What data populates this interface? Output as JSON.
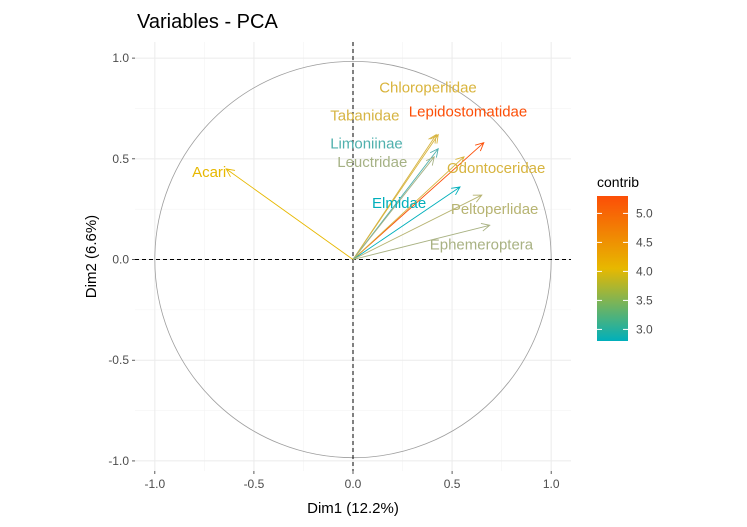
{
  "chart_data": {
    "type": "scatter",
    "subtype": "pca-variable-correlation-circle",
    "title": "Variables - PCA",
    "xlabel": "Dim1 (12.2%)",
    "ylabel": "Dim2 (6.6%)",
    "xlim": [
      -1.1,
      1.1
    ],
    "ylim": [
      -1.05,
      1.08
    ],
    "x_ticks": [
      -1.0,
      -0.5,
      0.0,
      0.5,
      1.0
    ],
    "x_tick_labels": [
      "-1.0",
      "-0.5",
      "0.0",
      "0.5",
      "1.0"
    ],
    "y_ticks": [
      -1.0,
      -0.5,
      0.0,
      0.5,
      1.0
    ],
    "y_tick_labels": [
      "-1.0",
      "-0.5",
      "0.0",
      "0.5",
      "1.0"
    ],
    "grid": true,
    "background": "#ebebeb-free light grey grid",
    "variables": [
      {
        "name": "Acari",
        "x": -0.64,
        "y": 0.45,
        "contrib": 4.1,
        "color": "#e7b800"
      },
      {
        "name": "Chloroperlidae",
        "x": 0.43,
        "y": 0.62,
        "contrib": 3.75,
        "color": "#d9b43c"
      },
      {
        "name": "Tabanidae",
        "x": 0.42,
        "y": 0.62,
        "contrib": 3.7,
        "color": "#d6b442"
      },
      {
        "name": "Lepidostomatidae",
        "x": 0.66,
        "y": 0.58,
        "contrib": 5.2,
        "color": "#fc4e07"
      },
      {
        "name": "Limoniinae",
        "x": 0.43,
        "y": 0.55,
        "contrib": 3.05,
        "color": "#4fb0ad"
      },
      {
        "name": "Leuctridae",
        "x": 0.41,
        "y": 0.51,
        "contrib": 3.35,
        "color": "#a6b285"
      },
      {
        "name": "Odontoceridae",
        "x": 0.56,
        "y": 0.51,
        "contrib": 3.85,
        "color": "#d7b43f"
      },
      {
        "name": "Elmidae",
        "x": 0.54,
        "y": 0.36,
        "contrib": 2.85,
        "color": "#00afbb"
      },
      {
        "name": "Peltoperlidae",
        "x": 0.65,
        "y": 0.32,
        "contrib": 3.45,
        "color": "#b7b472"
      },
      {
        "name": "Ephemeroptera",
        "x": 0.69,
        "y": 0.17,
        "contrib": 3.35,
        "color": "#a9b283"
      }
    ],
    "legend": {
      "title": "contrib",
      "position": "right",
      "min": 2.8,
      "max": 5.3,
      "ticks": [
        3.0,
        3.5,
        4.0,
        4.5,
        5.0
      ],
      "tick_labels": [
        "3.0",
        "3.5",
        "4.0",
        "4.5",
        "5.0"
      ],
      "gradient": [
        "#00afbb",
        "#e7b800",
        "#fc4e07"
      ]
    }
  }
}
